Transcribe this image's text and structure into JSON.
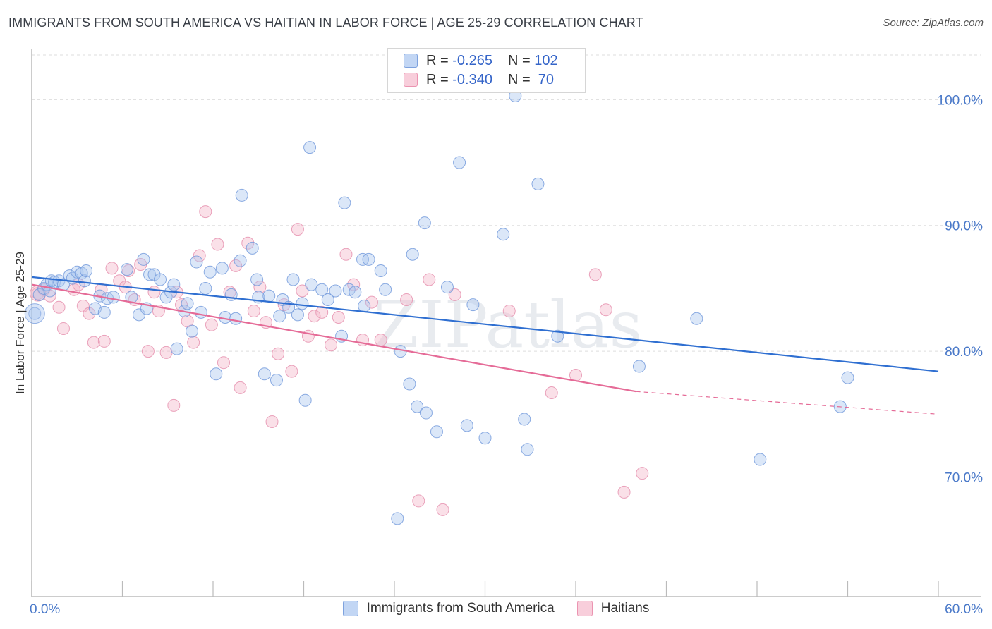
{
  "title": "IMMIGRANTS FROM SOUTH AMERICA VS HAITIAN IN LABOR FORCE | AGE 25-29 CORRELATION CHART",
  "source": "Source: ZipAtlas.com",
  "watermark": "ZIPatlas",
  "colors": {
    "blue": "#4a79c9",
    "blue_fill": "#aac6ef",
    "blue_line": "#2f6fd1",
    "pink_fill": "#f4b6c9",
    "pink_line": "#e56b97",
    "grid": "#dddddd"
  },
  "legend": {
    "rows": [
      {
        "r_label": "R = ",
        "r_value": "-0.265",
        "n_label": "N = ",
        "n_value": "102"
      },
      {
        "r_label": "R = ",
        "r_value": "-0.340",
        "n_label": "N = ",
        "n_value": " 70"
      }
    ]
  },
  "bottom_legend": {
    "series_a": "Immigrants from South America",
    "series_b": "Haitians"
  },
  "chart_data": {
    "type": "scatter",
    "title": "IMMIGRANTS FROM SOUTH AMERICA VS HAITIAN IN LABOR FORCE | AGE 25-29 CORRELATION CHART",
    "xlabel": "",
    "ylabel": "In Labor Force | Age 25-29",
    "xlim": [
      0,
      60
    ],
    "ylim": [
      60.5,
      104
    ],
    "x_tick_labels": [
      "0.0%",
      "60.0%"
    ],
    "y_ticks": [
      70,
      80,
      90,
      100
    ],
    "y_tick_labels": [
      "70.0%",
      "80.0%",
      "90.0%",
      "100.0%"
    ],
    "grid": true,
    "legend_position": "top-center",
    "series": [
      {
        "name": "Immigrants from South America",
        "R": -0.265,
        "N": 102,
        "trend": {
          "x": [
            0,
            60
          ],
          "y": [
            85.9,
            78.4
          ]
        },
        "points": [
          [
            0.2,
            83
          ],
          [
            0.5,
            84.5
          ],
          [
            0.8,
            85
          ],
          [
            1.0,
            85.3
          ],
          [
            1.2,
            84.8
          ],
          [
            1.3,
            85.6
          ],
          [
            1.5,
            85.5
          ],
          [
            1.8,
            85.6
          ],
          [
            2.1,
            85.3
          ],
          [
            2.5,
            86
          ],
          [
            2.7,
            85.8
          ],
          [
            3.0,
            86.3
          ],
          [
            3.3,
            86.2
          ],
          [
            3.5,
            85.6
          ],
          [
            3.6,
            86.4
          ],
          [
            4.2,
            83.4
          ],
          [
            4.5,
            84.4
          ],
          [
            4.8,
            83.1
          ],
          [
            5.0,
            84.2
          ],
          [
            5.4,
            84.3
          ],
          [
            6.3,
            86.5
          ],
          [
            6.6,
            84.3
          ],
          [
            7.1,
            82.9
          ],
          [
            7.4,
            87.3
          ],
          [
            7.6,
            83.4
          ],
          [
            7.8,
            86.1
          ],
          [
            8.1,
            86.1
          ],
          [
            8.5,
            85.7
          ],
          [
            8.9,
            84.3
          ],
          [
            9.2,
            84.7
          ],
          [
            9.4,
            85.3
          ],
          [
            9.6,
            80.2
          ],
          [
            10.1,
            83.2
          ],
          [
            10.3,
            83.8
          ],
          [
            10.6,
            81.6
          ],
          [
            10.9,
            87.1
          ],
          [
            11.2,
            83.1
          ],
          [
            11.5,
            85
          ],
          [
            11.8,
            86.3
          ],
          [
            12.2,
            78.2
          ],
          [
            12.6,
            86.6
          ],
          [
            12.8,
            82.7
          ],
          [
            13.2,
            84.5
          ],
          [
            13.5,
            82.6
          ],
          [
            13.8,
            87.2
          ],
          [
            13.9,
            92.4
          ],
          [
            14.6,
            88.2
          ],
          [
            14.9,
            85.7
          ],
          [
            15.0,
            84.3
          ],
          [
            15.4,
            78.2
          ],
          [
            15.7,
            84.4
          ],
          [
            16.2,
            77.7
          ],
          [
            16.4,
            82.8
          ],
          [
            16.6,
            84.1
          ],
          [
            17.0,
            83.5
          ],
          [
            17.3,
            85.7
          ],
          [
            17.6,
            82.9
          ],
          [
            17.9,
            83.8
          ],
          [
            18.1,
            76.1
          ],
          [
            18.4,
            96.2
          ],
          [
            18.5,
            85.3
          ],
          [
            19.2,
            84.9
          ],
          [
            19.6,
            84.1
          ],
          [
            20.1,
            84.8
          ],
          [
            20.5,
            81.2
          ],
          [
            20.7,
            91.8
          ],
          [
            21.0,
            84.9
          ],
          [
            21.4,
            84.7
          ],
          [
            21.9,
            87.3
          ],
          [
            22.0,
            83.6
          ],
          [
            22.3,
            87.3
          ],
          [
            23.1,
            86.4
          ],
          [
            23.4,
            84.9
          ],
          [
            24.2,
            66.7
          ],
          [
            24.4,
            80
          ],
          [
            25.0,
            77.4
          ],
          [
            25.2,
            87.7
          ],
          [
            25.5,
            75.6
          ],
          [
            26.0,
            90.2
          ],
          [
            26.1,
            75.1
          ],
          [
            26.8,
            73.6
          ],
          [
            27.5,
            85.1
          ],
          [
            28.3,
            95
          ],
          [
            28.8,
            74.1
          ],
          [
            29.2,
            83.7
          ],
          [
            30.0,
            73.1
          ],
          [
            31.2,
            89.3
          ],
          [
            32.0,
            100.3
          ],
          [
            32.6,
            74.6
          ],
          [
            32.8,
            72.2
          ],
          [
            33.5,
            93.3
          ],
          [
            34.8,
            81.2
          ],
          [
            40.2,
            78.8
          ],
          [
            44.0,
            82.6
          ],
          [
            48.2,
            71.4
          ],
          [
            53.5,
            75.6
          ],
          [
            54.0,
            77.9
          ]
        ]
      },
      {
        "name": "Haitians",
        "R": -0.34,
        "N": 70,
        "trend": {
          "x": [
            0,
            40
          ],
          "y": [
            85.3,
            76.8
          ]
        },
        "trend_dashed": {
          "x": [
            40,
            60
          ],
          "y": [
            76.8,
            75
          ]
        },
        "points": [
          [
            0.4,
            84.6
          ],
          [
            0.8,
            84.9
          ],
          [
            1.2,
            84.4
          ],
          [
            1.8,
            83.5
          ],
          [
            2.1,
            81.8
          ],
          [
            2.8,
            84.9
          ],
          [
            3.1,
            85.3
          ],
          [
            3.4,
            83.6
          ],
          [
            3.8,
            83
          ],
          [
            4.1,
            80.7
          ],
          [
            4.6,
            84.9
          ],
          [
            4.8,
            80.8
          ],
          [
            5.3,
            86.6
          ],
          [
            5.8,
            85.6
          ],
          [
            6.2,
            85.1
          ],
          [
            6.4,
            86.4
          ],
          [
            6.8,
            84.1
          ],
          [
            7.2,
            86.9
          ],
          [
            7.7,
            80
          ],
          [
            8.1,
            84.7
          ],
          [
            8.4,
            83.2
          ],
          [
            8.9,
            79.9
          ],
          [
            9.4,
            75.7
          ],
          [
            9.6,
            84.7
          ],
          [
            9.9,
            83.7
          ],
          [
            10.3,
            82.4
          ],
          [
            10.7,
            80.7
          ],
          [
            11.1,
            87.6
          ],
          [
            11.5,
            91.1
          ],
          [
            11.9,
            82.1
          ],
          [
            12.3,
            88.5
          ],
          [
            12.7,
            79.1
          ],
          [
            13.1,
            84.7
          ],
          [
            13.5,
            86.8
          ],
          [
            13.8,
            77.1
          ],
          [
            14.3,
            88.6
          ],
          [
            14.7,
            83.2
          ],
          [
            15.1,
            85.1
          ],
          [
            15.5,
            82.3
          ],
          [
            15.9,
            74.4
          ],
          [
            16.3,
            79.8
          ],
          [
            16.7,
            83.7
          ],
          [
            17.2,
            78.4
          ],
          [
            17.6,
            89.7
          ],
          [
            17.9,
            84.8
          ],
          [
            18.3,
            81.2
          ],
          [
            18.7,
            82.8
          ],
          [
            19.2,
            83.1
          ],
          [
            19.8,
            80.5
          ],
          [
            20.3,
            82.7
          ],
          [
            20.8,
            87.7
          ],
          [
            21.3,
            85.3
          ],
          [
            21.9,
            80.9
          ],
          [
            22.5,
            83.9
          ],
          [
            23.1,
            80.9
          ],
          [
            24.8,
            84.1
          ],
          [
            25.6,
            68.1
          ],
          [
            26.3,
            85.7
          ],
          [
            27.2,
            67.4
          ],
          [
            28.0,
            84.5
          ],
          [
            31.6,
            83.2
          ],
          [
            34.4,
            76.7
          ],
          [
            36.0,
            78.1
          ],
          [
            37.3,
            86.1
          ],
          [
            38.0,
            83.3
          ],
          [
            39.2,
            68.8
          ],
          [
            40.4,
            70.3
          ]
        ]
      }
    ]
  }
}
